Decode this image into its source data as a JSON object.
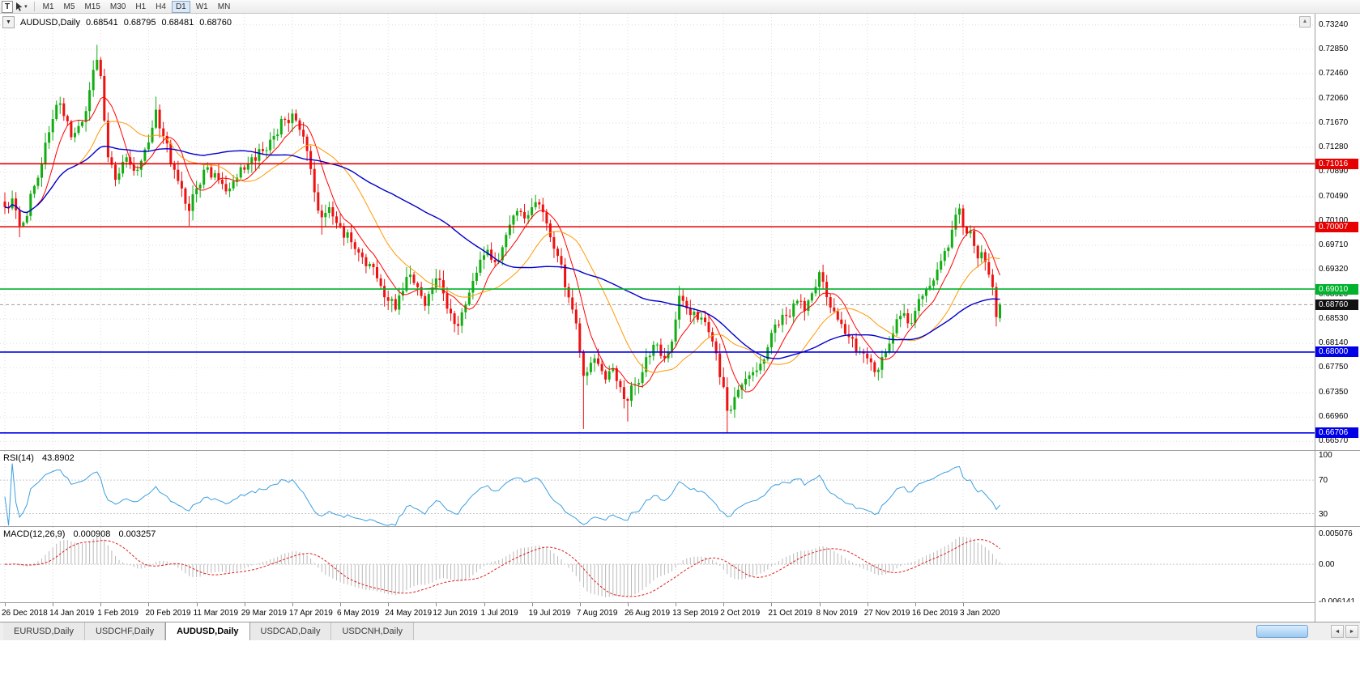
{
  "toolbar": {
    "text_tool_label": "T",
    "timeframes": [
      "M1",
      "M5",
      "M15",
      "M30",
      "H1",
      "H4",
      "D1",
      "W1",
      "MN"
    ],
    "active_timeframe": "D1"
  },
  "icons": {
    "dropdown": "▼",
    "caret_down": "▾",
    "shift_marker": "▲",
    "scroll_left": "◄",
    "scroll_right": "►"
  },
  "chart_header": {
    "symbol_label": "AUDUSD,Daily",
    "open": "0.68541",
    "high": "0.68795",
    "low": "0.68481",
    "close": "0.68760"
  },
  "price_axis": {
    "ticks": [
      "0.73240",
      "0.72850",
      "0.72460",
      "0.72060",
      "0.71670",
      "0.71280",
      "0.70890",
      "0.70490",
      "0.70100",
      "0.69710",
      "0.69320",
      "0.68920",
      "0.68530",
      "0.68140",
      "0.67750",
      "0.67350",
      "0.66960",
      "0.66570"
    ]
  },
  "time_axis": {
    "labels": [
      "26 Dec 2018",
      "14 Jan 2019",
      "1 Feb 2019",
      "20 Feb 2019",
      "11 Mar 2019",
      "29 Mar 2019",
      "17 Apr 2019",
      "6 May 2019",
      "24 May 2019",
      "12 Jun 2019",
      "1 Jul 2019",
      "19 Jul 2019",
      "7 Aug 2019",
      "26 Aug 2019",
      "13 Sep 2019",
      "2 Oct 2019",
      "21 Oct 2019",
      "8 Nov 2019",
      "27 Nov 2019",
      "16 Dec 2019",
      "3 Jan 2020"
    ]
  },
  "levels": {
    "lines": [
      {
        "price": 0.71016,
        "label": "0.71016",
        "color": "#e60000"
      },
      {
        "price": 0.70007,
        "label": "0.70007",
        "color": "#e60000"
      },
      {
        "price": 0.6901,
        "label": "0.69010",
        "color": "#00b22d"
      },
      {
        "price": 0.68,
        "label": "0.68000",
        "color": "#0000e6"
      },
      {
        "price": 0.66706,
        "label": "0.66706",
        "color": "#0000e6"
      }
    ],
    "current_price": {
      "value": 0.6876,
      "label": "0.68760",
      "badge_color": "#111111"
    }
  },
  "chart_data": {
    "type": "candlestick",
    "symbol": "AUDUSD",
    "timeframe": "Daily",
    "bar_count": 271,
    "bars_per_x_label": 13,
    "visible_range": {
      "high": 0.7334,
      "low": 0.6647
    },
    "up_color": "#12ad12",
    "down_color": "#ee1111",
    "last_bar": {
      "open": 0.68541,
      "high": 0.68795,
      "low": 0.68481,
      "close": 0.6876
    },
    "close_path": [
      [
        0,
        0.7032
      ],
      [
        2,
        0.7046
      ],
      [
        4,
        0.7002
      ],
      [
        6,
        0.7018
      ],
      [
        8,
        0.7066
      ],
      [
        10,
        0.7102
      ],
      [
        12,
        0.7152
      ],
      [
        14,
        0.7196
      ],
      [
        16,
        0.7178
      ],
      [
        18,
        0.7144
      ],
      [
        20,
        0.7162
      ],
      [
        22,
        0.7186
      ],
      [
        24,
        0.7252
      ],
      [
        25,
        0.7268
      ],
      [
        26,
        0.7242
      ],
      [
        28,
        0.7112
      ],
      [
        30,
        0.7076
      ],
      [
        33,
        0.7112
      ],
      [
        36,
        0.7092
      ],
      [
        39,
        0.7136
      ],
      [
        41,
        0.7188
      ],
      [
        43,
        0.7146
      ],
      [
        46,
        0.7092
      ],
      [
        48,
        0.7062
      ],
      [
        50,
        0.7026
      ],
      [
        52,
        0.7062
      ],
      [
        55,
        0.7096
      ],
      [
        58,
        0.7076
      ],
      [
        61,
        0.7062
      ],
      [
        64,
        0.7096
      ],
      [
        67,
        0.7112
      ],
      [
        70,
        0.7122
      ],
      [
        73,
        0.7146
      ],
      [
        76,
        0.7172
      ],
      [
        78,
        0.7182
      ],
      [
        80,
        0.7156
      ],
      [
        82,
        0.7122
      ],
      [
        84,
        0.7056
      ],
      [
        86,
        0.7016
      ],
      [
        88,
        0.7032
      ],
      [
        91,
        0.7002
      ],
      [
        94,
        0.6976
      ],
      [
        97,
        0.6952
      ],
      [
        100,
        0.6936
      ],
      [
        102,
        0.6906
      ],
      [
        104,
        0.6882
      ],
      [
        106,
        0.6868
      ],
      [
        108,
        0.6898
      ],
      [
        110,
        0.6924
      ],
      [
        112,
        0.6904
      ],
      [
        114,
        0.6874
      ],
      [
        117,
        0.6918
      ],
      [
        119,
        0.6894
      ],
      [
        121,
        0.6862
      ],
      [
        123,
        0.6842
      ],
      [
        125,
        0.6876
      ],
      [
        127,
        0.6914
      ],
      [
        129,
        0.6948
      ],
      [
        131,
        0.6964
      ],
      [
        133,
        0.6944
      ],
      [
        135,
        0.6968
      ],
      [
        137,
        0.7004
      ],
      [
        139,
        0.7026
      ],
      [
        141,
        0.7014
      ],
      [
        143,
        0.7032
      ],
      [
        144,
        0.704
      ],
      [
        146,
        0.7024
      ],
      [
        148,
        0.6984
      ],
      [
        150,
        0.6954
      ],
      [
        152,
        0.6904
      ],
      [
        154,
        0.6868
      ],
      [
        155,
        0.6846
      ],
      [
        156,
        0.68
      ],
      [
        157,
        0.6762
      ],
      [
        158,
        0.6768
      ],
      [
        160,
        0.679
      ],
      [
        163,
        0.6756
      ],
      [
        165,
        0.6774
      ],
      [
        167,
        0.6744
      ],
      [
        169,
        0.6722
      ],
      [
        171,
        0.6748
      ],
      [
        173,
        0.6768
      ],
      [
        175,
        0.6794
      ],
      [
        177,
        0.6812
      ],
      [
        179,
        0.679
      ],
      [
        180,
        0.68
      ],
      [
        182,
        0.6852
      ],
      [
        183,
        0.689
      ],
      [
        185,
        0.687
      ],
      [
        188,
        0.6852
      ],
      [
        191,
        0.6832
      ],
      [
        193,
        0.6798
      ],
      [
        195,
        0.6744
      ],
      [
        196,
        0.6706
      ],
      [
        198,
        0.6728
      ],
      [
        200,
        0.6748
      ],
      [
        203,
        0.6768
      ],
      [
        206,
        0.6788
      ],
      [
        209,
        0.6844
      ],
      [
        212,
        0.6858
      ],
      [
        215,
        0.6882
      ],
      [
        217,
        0.6866
      ],
      [
        219,
        0.6894
      ],
      [
        221,
        0.6928
      ],
      [
        223,
        0.6888
      ],
      [
        226,
        0.6852
      ],
      [
        229,
        0.6824
      ],
      [
        231,
        0.68
      ],
      [
        234,
        0.679
      ],
      [
        236,
        0.6768
      ],
      [
        238,
        0.6792
      ],
      [
        241,
        0.683
      ],
      [
        243,
        0.6858
      ],
      [
        245,
        0.6846
      ],
      [
        247,
        0.6866
      ],
      [
        249,
        0.689
      ],
      [
        251,
        0.6906
      ],
      [
        253,
        0.6932
      ],
      [
        255,
        0.6962
      ],
      [
        257,
        0.6996
      ],
      [
        258,
        0.702
      ],
      [
        259,
        0.703
      ],
      [
        260,
        0.7
      ],
      [
        261,
        0.699
      ],
      [
        262,
        0.6994
      ],
      [
        263,
        0.697
      ],
      [
        264,
        0.695
      ],
      [
        265,
        0.696
      ],
      [
        266,
        0.6944
      ],
      [
        267,
        0.6924
      ],
      [
        268,
        0.6904
      ],
      [
        269,
        0.6856
      ],
      [
        270,
        0.6876
      ]
    ],
    "spike_bars": [
      {
        "index": 4,
        "low": 0.6984
      },
      {
        "index": 25,
        "high": 0.7292
      },
      {
        "index": 41,
        "high": 0.7209
      },
      {
        "index": 50,
        "low": 0.7002
      },
      {
        "index": 86,
        "low": 0.6988
      },
      {
        "index": 105,
        "low": 0.6864
      },
      {
        "index": 123,
        "low": 0.6831
      },
      {
        "index": 144,
        "high": 0.7046
      },
      {
        "index": 157,
        "low": 0.6677
      },
      {
        "index": 169,
        "low": 0.6689
      },
      {
        "index": 196,
        "low": 0.667
      },
      {
        "index": 259,
        "high": 0.7036
      }
    ],
    "horizontal_levels": [
      0.71016,
      0.70007,
      0.6901,
      0.68,
      0.66706
    ],
    "moving_averages": [
      {
        "period": 8,
        "color": "#ff0000",
        "name": "fast-ma"
      },
      {
        "period": 21,
        "color": "#ff9900",
        "name": "medium-ma"
      },
      {
        "period": 55,
        "color": "#0000cd",
        "name": "slow-ma"
      }
    ],
    "rsi": {
      "label": "RSI(14)",
      "value": "43.8902",
      "period": 14,
      "axis_labels": [
        "100",
        "70",
        "30"
      ],
      "level_lines": [
        70,
        30
      ],
      "scale": [
        15,
        105
      ],
      "color": "#3b9fe0"
    },
    "macd": {
      "label": "MACD(12,26,9)",
      "value_main": "0.000908",
      "value_signal": "0.003257",
      "fast": 12,
      "slow": 26,
      "signal": 9,
      "axis_labels": [
        "0.005076",
        "0.00",
        "-0.006141"
      ],
      "scale": [
        -0.0063,
        0.0062
      ],
      "histogram_color": "#b9b9b9",
      "signal_color": "#e02020"
    }
  },
  "tabs": [
    {
      "label": "EURUSD,Daily",
      "active": false
    },
    {
      "label": "USDCHF,Daily",
      "active": false
    },
    {
      "label": "AUDUSD,Daily",
      "active": true
    },
    {
      "label": "USDCAD,Daily",
      "active": false
    },
    {
      "label": "USDCNH,Daily",
      "active": false
    }
  ]
}
